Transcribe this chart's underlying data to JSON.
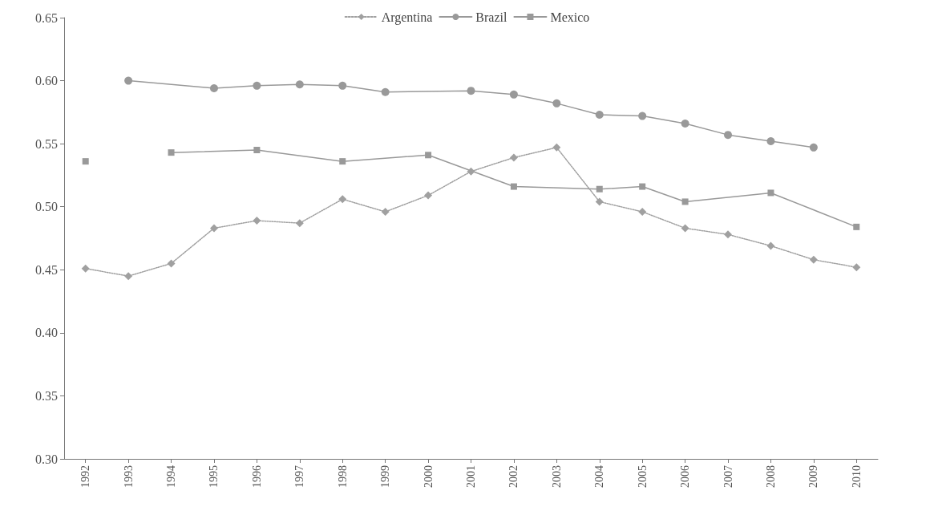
{
  "chart_data": {
    "type": "line",
    "legend": "top",
    "grid": false,
    "xlim": [
      1991.5,
      2010.5
    ],
    "xticks": [
      1992,
      1993,
      1994,
      1995,
      1996,
      1997,
      1998,
      1999,
      2000,
      2001,
      2002,
      2003,
      2004,
      2005,
      2006,
      2007,
      2008,
      2009,
      2010
    ],
    "ylim": [
      0.3,
      0.65
    ],
    "yticks": [
      {
        "value": 0.3,
        "label": "0.30"
      },
      {
        "value": 0.35,
        "label": "0.35"
      },
      {
        "value": 0.4,
        "label": "0.40"
      },
      {
        "value": 0.45,
        "label": "0.45"
      },
      {
        "value": 0.5,
        "label": "0.50"
      },
      {
        "value": 0.55,
        "label": "0.55"
      },
      {
        "value": 0.6,
        "label": "0.60"
      },
      {
        "value": 0.65,
        "label": "0.65"
      }
    ],
    "series": [
      {
        "name": "Argentina",
        "color": "#a0a0a0",
        "marker": "diamond",
        "line_style": "dotted",
        "x": [
          1992,
          1993,
          1994,
          1995,
          1996,
          1997,
          1998,
          1999,
          2000,
          2001,
          2002,
          2003,
          2004,
          2005,
          2006,
          2007,
          2008,
          2009,
          2010
        ],
        "values": [
          0.451,
          0.445,
          0.455,
          0.483,
          0.489,
          0.487,
          0.506,
          0.496,
          0.509,
          0.528,
          0.539,
          0.547,
          0.504,
          0.496,
          0.483,
          0.478,
          0.469,
          0.458,
          0.452
        ]
      },
      {
        "name": "Brazil",
        "color": "#999999",
        "marker": "circle",
        "line_style": "solid",
        "x": [
          1993,
          1995,
          1996,
          1997,
          1998,
          1999,
          2001,
          2002,
          2003,
          2004,
          2005,
          2006,
          2007,
          2008,
          2009
        ],
        "values": [
          0.6,
          0.594,
          0.596,
          0.597,
          0.596,
          0.591,
          0.592,
          0.589,
          0.582,
          0.573,
          0.572,
          0.566,
          0.557,
          0.552,
          0.547
        ]
      },
      {
        "name": "Mexico",
        "color": "#999999",
        "marker": "square",
        "line_style": "solid",
        "x": [
          1992,
          1993,
          1994,
          1996,
          1998,
          2000,
          2002,
          2004,
          2005,
          2006,
          2008,
          2010
        ],
        "values": [
          0.536,
          null,
          0.543,
          0.545,
          0.536,
          0.541,
          0.516,
          0.514,
          0.516,
          0.504,
          0.511,
          0.484
        ]
      }
    ]
  }
}
